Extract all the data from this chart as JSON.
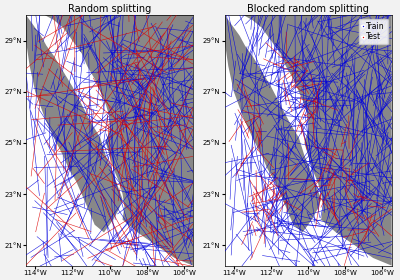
{
  "title_left": "Random splitting",
  "title_right": "Blocked random splitting",
  "legend_train_label": "Train",
  "legend_test_label": "Test",
  "train_color": "#0000dd",
  "test_color": "#dd0000",
  "xlim": [
    -114.5,
    -105.5
  ],
  "ylim": [
    20.2,
    30.0
  ],
  "xticks": [
    -114,
    -112,
    -110,
    -108,
    -106
  ],
  "yticks": [
    21,
    23,
    25,
    27,
    29
  ],
  "xtick_labels": [
    "114°W",
    "112°W",
    "110°W",
    "108°W",
    "106°W"
  ],
  "ytick_labels": [
    "21°N",
    "23°N",
    "25°N",
    "27°N",
    "29°N"
  ],
  "background_color": "#888888",
  "land_color": "#888888",
  "water_color": "#ffffff",
  "fig_bg": "#f2f2f2",
  "line_width": 0.4,
  "n_tracks_train_rand": 300,
  "n_tracks_test_rand": 120,
  "n_tracks_train_block": 350,
  "n_tracks_test_block": 150,
  "legend_markersize": 4,
  "legend_fontsize": 5.5,
  "title_fontsize": 7,
  "tick_fontsize": 5
}
